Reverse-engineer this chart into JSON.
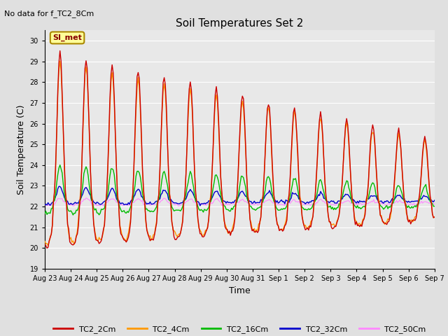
{
  "title": "Soil Temperatures Set 2",
  "subtitle": "No data for f_TC2_8Cm",
  "xlabel": "Time",
  "ylabel": "Soil Temperature (C)",
  "ylim": [
    19.0,
    30.5
  ],
  "yticks": [
    19.0,
    20.0,
    21.0,
    22.0,
    23.0,
    24.0,
    25.0,
    26.0,
    27.0,
    28.0,
    29.0,
    30.0
  ],
  "fig_bg": "#e0e0e0",
  "plot_bg": "#e8e8e8",
  "series_colors": {
    "TC2_2Cm": "#cc0000",
    "TC2_4Cm": "#ff9900",
    "TC2_16Cm": "#00bb00",
    "TC2_32Cm": "#0000cc",
    "TC2_50Cm": "#ff88ff"
  },
  "annotation_box": {
    "text": "SI_met",
    "bg": "#ffff99",
    "border": "#aa8800",
    "text_color": "#880000"
  },
  "x_start": 0,
  "x_end": 15,
  "xtick_positions": [
    0,
    1,
    2,
    3,
    4,
    5,
    6,
    7,
    8,
    9,
    10,
    11,
    12,
    13,
    14,
    15
  ],
  "xtick_labels": [
    "Aug 23",
    "Aug 24",
    "Aug 25",
    "Aug 26",
    "Aug 27",
    "Aug 28",
    "Aug 29",
    "Aug 30",
    "Aug 31",
    "Sep 1",
    "Sep 2",
    "Sep 3",
    "Sep 4",
    "Sep 5",
    "Sep 6",
    "Sep 7"
  ]
}
